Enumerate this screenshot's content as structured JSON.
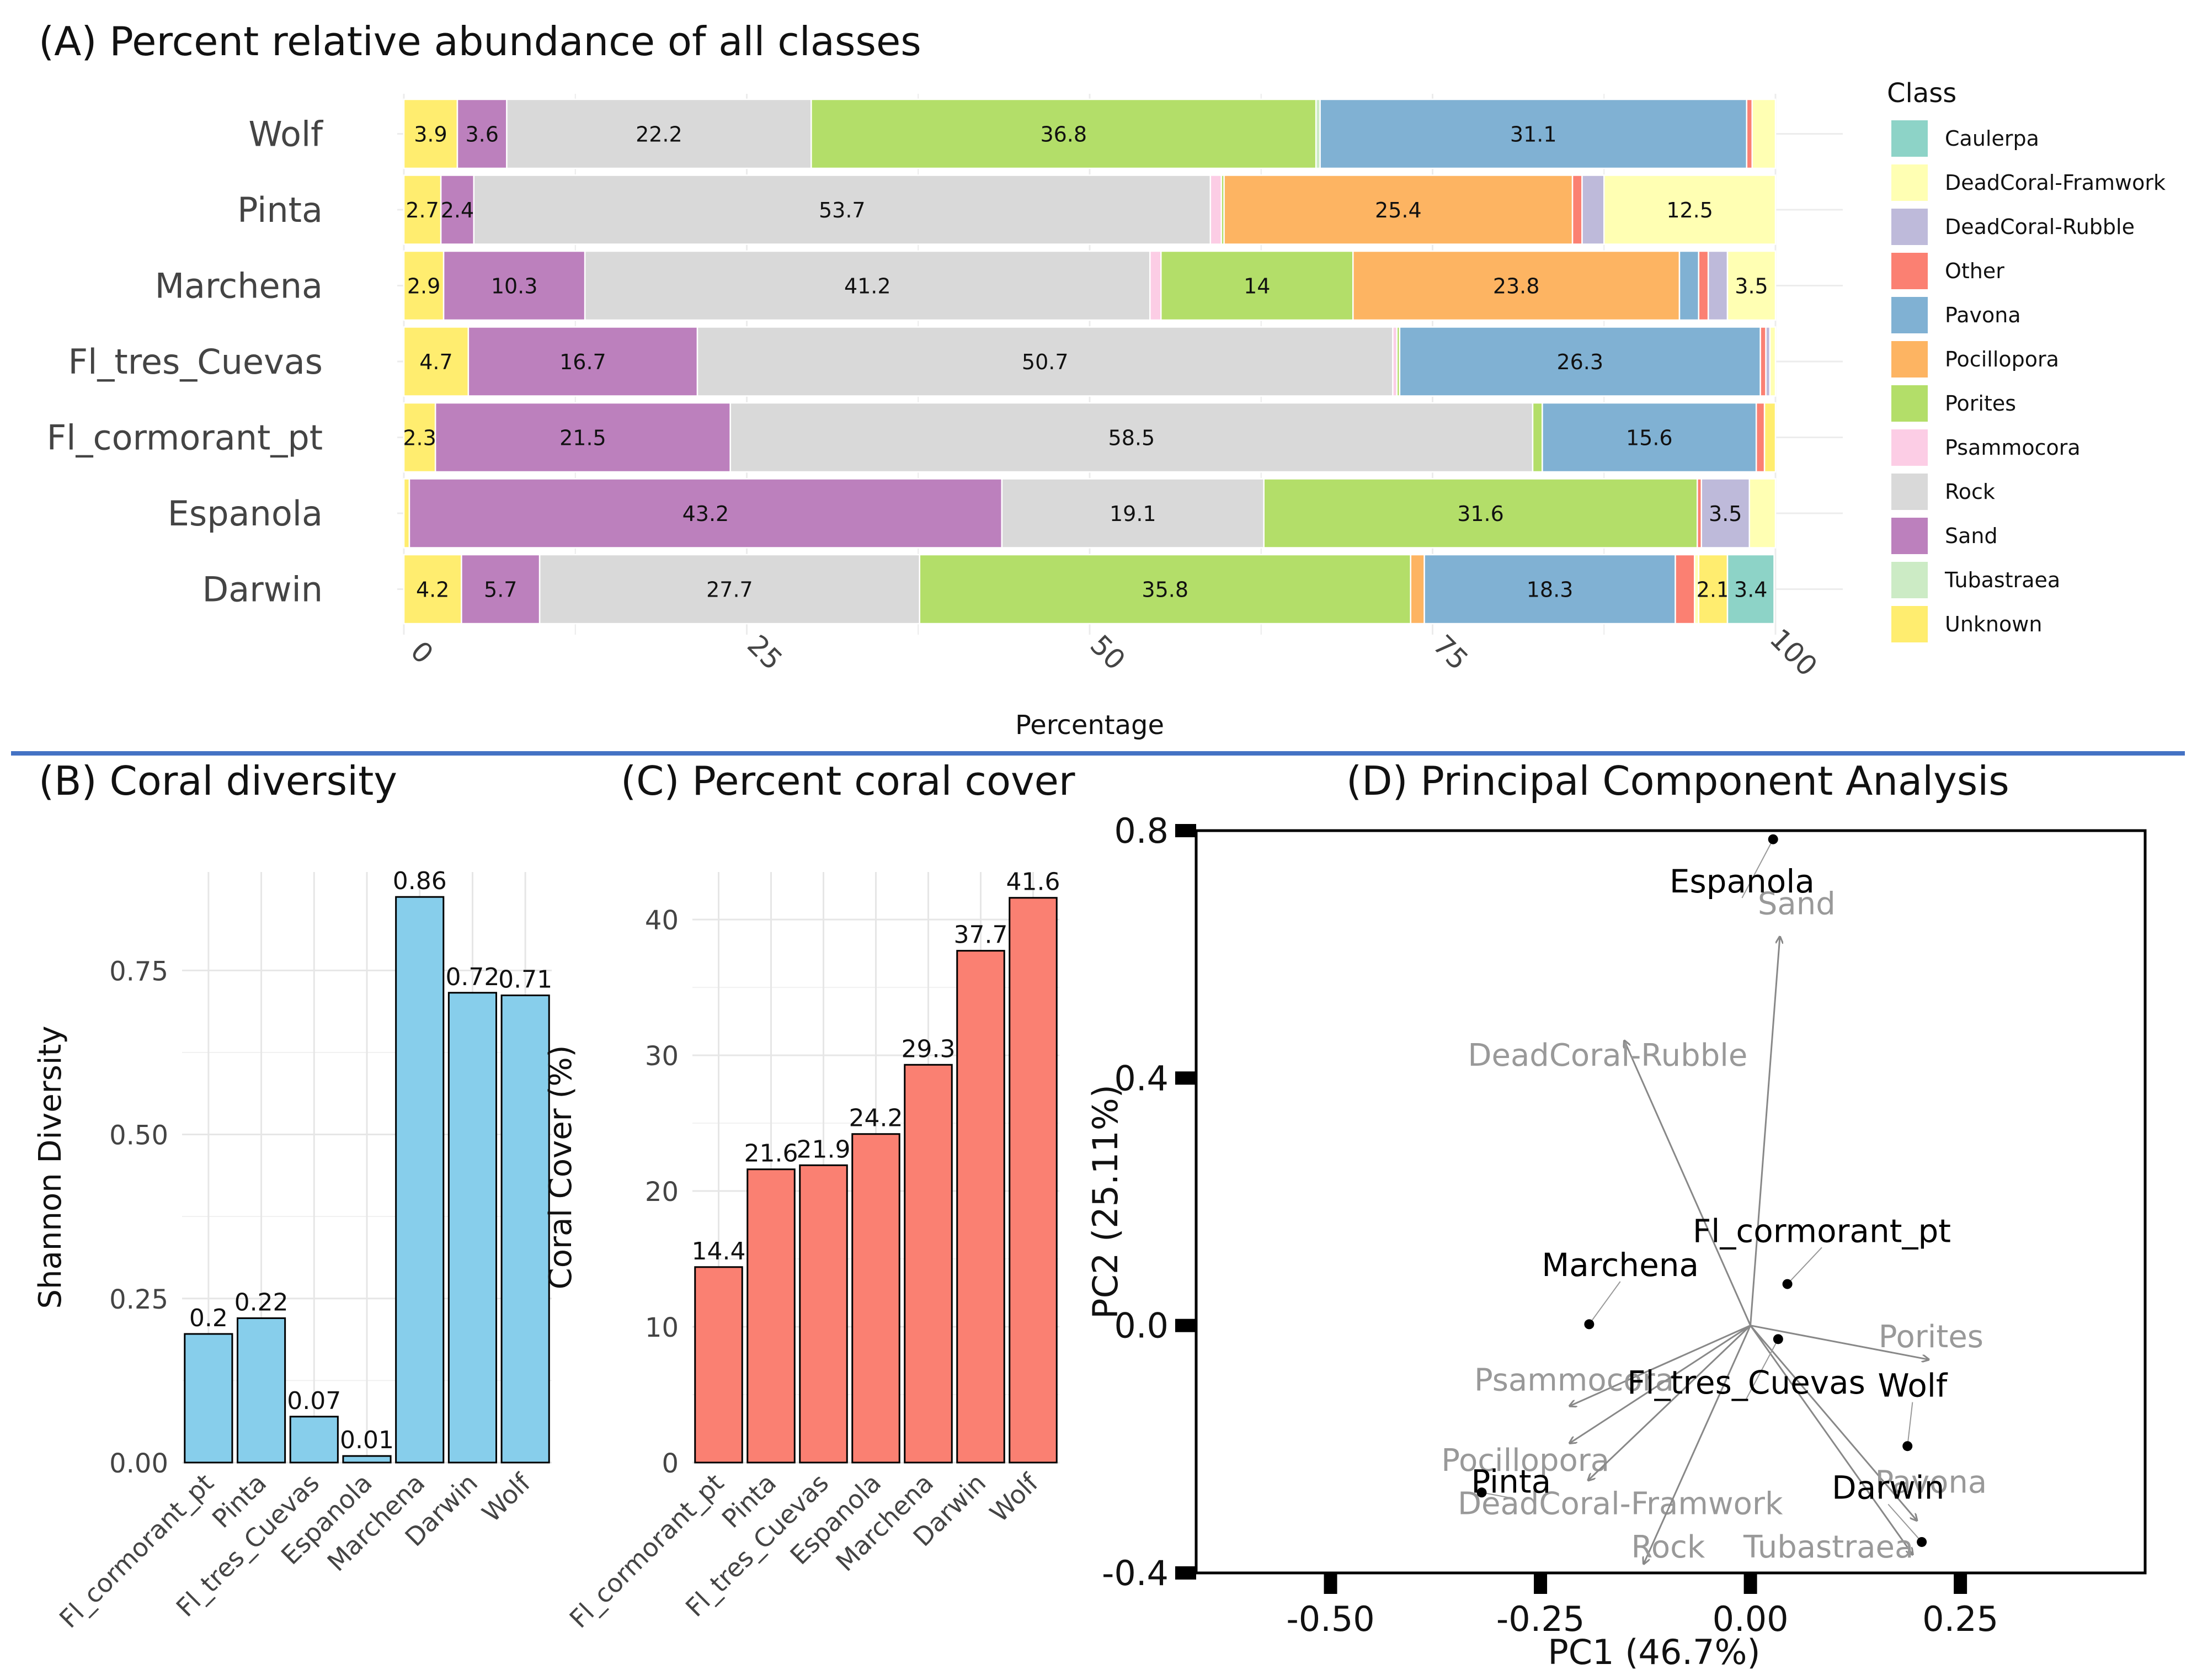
{
  "panel_titles": {
    "a": "(A) Percent relative abundance of all classes",
    "b": "(B) Coral diversity",
    "c": "(C) Percent coral cover",
    "d": "(D) Principal Component Analysis"
  },
  "colors": {
    "Caulerpa": "#8dd3c7",
    "DeadCoral-Framwork": "#ffffb3",
    "DeadCoral-Rubble": "#bebada",
    "Other": "#fb8072",
    "Pavona": "#80b1d3",
    "Pocillopora": "#fdb462",
    "Porites": "#b3de69",
    "Psammocora": "#fccde5",
    "Rock": "#d9d9d9",
    "Sand": "#bc80bd",
    "Tubastraea": "#ccebc5",
    "Unknown": "#ffed6f",
    "diversity_bar": "#87ceeb",
    "cover_bar": "#fa8072",
    "divider": "#4472c4"
  },
  "chart_data": [
    {
      "id": "A",
      "type": "bar",
      "orientation": "horizontal",
      "stacked": true,
      "title": "(A) Percent relative abundance of all classes",
      "xlabel": "Percentage",
      "ylabel": "",
      "xlim": [
        0,
        100
      ],
      "xticks": [
        "0",
        "25",
        "50",
        "75",
        "100"
      ],
      "legend_title": "Class",
      "legend_position": "right",
      "classes": [
        "Caulerpa",
        "DeadCoral-Framwork",
        "DeadCoral-Rubble",
        "Other",
        "Pavona",
        "Pocillopora",
        "Porites",
        "Psammocora",
        "Rock",
        "Sand",
        "Tubastraea",
        "Unknown"
      ],
      "categories": [
        "Wolf",
        "Pinta",
        "Marchena",
        "Fl_tres_Cuevas",
        "Fl_cormorant_pt",
        "Espanola",
        "Darwin"
      ],
      "rows": [
        {
          "site": "Wolf",
          "segments": [
            {
              "cls": "Unknown",
              "v": 3.9,
              "label": "3.9"
            },
            {
              "cls": "Sand",
              "v": 3.6,
              "label": "3.6"
            },
            {
              "cls": "Rock",
              "v": 22.2,
              "label": "22.2"
            },
            {
              "cls": "Porites",
              "v": 36.8,
              "label": "36.8"
            },
            {
              "cls": "Tubastraea",
              "v": 0.3,
              "label": ""
            },
            {
              "cls": "Pavona",
              "v": 31.1,
              "label": "31.1"
            },
            {
              "cls": "Other",
              "v": 0.4,
              "label": ""
            },
            {
              "cls": "DeadCoral-Framwork",
              "v": 1.7,
              "label": ""
            }
          ]
        },
        {
          "site": "Pinta",
          "segments": [
            {
              "cls": "Unknown",
              "v": 2.7,
              "label": "2.7"
            },
            {
              "cls": "Sand",
              "v": 2.4,
              "label": "2.4"
            },
            {
              "cls": "Rock",
              "v": 53.7,
              "label": "53.7"
            },
            {
              "cls": "Psammocora",
              "v": 0.8,
              "label": ""
            },
            {
              "cls": "Porites",
              "v": 0.2,
              "label": ""
            },
            {
              "cls": "Pocillopora",
              "v": 25.4,
              "label": "25.4"
            },
            {
              "cls": "Other",
              "v": 0.7,
              "label": ""
            },
            {
              "cls": "DeadCoral-Rubble",
              "v": 1.6,
              "label": ""
            },
            {
              "cls": "DeadCoral-Framwork",
              "v": 12.5,
              "label": "12.5"
            }
          ]
        },
        {
          "site": "Marchena",
          "segments": [
            {
              "cls": "Unknown",
              "v": 2.9,
              "label": "2.9"
            },
            {
              "cls": "Sand",
              "v": 10.3,
              "label": "10.3"
            },
            {
              "cls": "Rock",
              "v": 41.2,
              "label": "41.2"
            },
            {
              "cls": "Psammocora",
              "v": 0.8,
              "label": ""
            },
            {
              "cls": "Porites",
              "v": 14.0,
              "label": "14"
            },
            {
              "cls": "Pocillopora",
              "v": 23.8,
              "label": "23.8"
            },
            {
              "cls": "Pavona",
              "v": 1.4,
              "label": ""
            },
            {
              "cls": "Other",
              "v": 0.7,
              "label": ""
            },
            {
              "cls": "DeadCoral-Rubble",
              "v": 1.4,
              "label": ""
            },
            {
              "cls": "DeadCoral-Framwork",
              "v": 3.5,
              "label": "3.5"
            }
          ]
        },
        {
          "site": "Fl_tres_Cuevas",
          "segments": [
            {
              "cls": "Unknown",
              "v": 4.7,
              "label": "4.7"
            },
            {
              "cls": "Sand",
              "v": 16.7,
              "label": "16.7"
            },
            {
              "cls": "Rock",
              "v": 50.7,
              "label": "50.7"
            },
            {
              "cls": "Psammocora",
              "v": 0.3,
              "label": ""
            },
            {
              "cls": "Porites",
              "v": 0.2,
              "label": ""
            },
            {
              "cls": "Pavona",
              "v": 26.3,
              "label": "26.3"
            },
            {
              "cls": "Other",
              "v": 0.4,
              "label": ""
            },
            {
              "cls": "DeadCoral-Rubble",
              "v": 0.3,
              "label": ""
            },
            {
              "cls": "DeadCoral-Framwork",
              "v": 0.4,
              "label": ""
            }
          ]
        },
        {
          "site": "Fl_cormorant_pt",
          "segments": [
            {
              "cls": "Unknown",
              "v": 2.3,
              "label": "2.3"
            },
            {
              "cls": "Sand",
              "v": 21.5,
              "label": "21.5"
            },
            {
              "cls": "Rock",
              "v": 58.5,
              "label": "58.5"
            },
            {
              "cls": "Porites",
              "v": 0.7,
              "label": ""
            },
            {
              "cls": "Pavona",
              "v": 15.6,
              "label": "15.6"
            },
            {
              "cls": "Other",
              "v": 0.6,
              "label": ""
            },
            {
              "cls": "Unknown",
              "v": 0.8,
              "label": ""
            }
          ]
        },
        {
          "site": "Espanola",
          "segments": [
            {
              "cls": "Unknown",
              "v": 0.4,
              "label": ""
            },
            {
              "cls": "Sand",
              "v": 43.2,
              "label": "43.2"
            },
            {
              "cls": "Rock",
              "v": 19.1,
              "label": "19.1"
            },
            {
              "cls": "Porites",
              "v": 31.6,
              "label": "31.6"
            },
            {
              "cls": "Other",
              "v": 0.3,
              "label": ""
            },
            {
              "cls": "DeadCoral-Rubble",
              "v": 3.5,
              "label": "3.5"
            },
            {
              "cls": "DeadCoral-Framwork",
              "v": 1.9,
              "label": ""
            }
          ]
        },
        {
          "site": "Darwin",
          "segments": [
            {
              "cls": "Unknown",
              "v": 4.2,
              "label": "4.2"
            },
            {
              "cls": "Sand",
              "v": 5.7,
              "label": "5.7"
            },
            {
              "cls": "Rock",
              "v": 27.7,
              "label": "27.7"
            },
            {
              "cls": "Porites",
              "v": 35.8,
              "label": "35.8"
            },
            {
              "cls": "Pocillopora",
              "v": 1.0,
              "label": ""
            },
            {
              "cls": "Pavona",
              "v": 18.3,
              "label": "18.3"
            },
            {
              "cls": "Other",
              "v": 1.4,
              "label": ""
            },
            {
              "cls": "DeadCoral-Framwork",
              "v": 0.3,
              "label": ""
            },
            {
              "cls": "Unknown",
              "v": 2.1,
              "label": "2.1"
            },
            {
              "cls": "Caulerpa",
              "v": 3.4,
              "label": "3.4"
            }
          ]
        }
      ]
    },
    {
      "id": "B",
      "type": "bar",
      "title": "(B) Coral diversity",
      "xlabel": "",
      "ylabel": "Shannon Diversity",
      "ylim": [
        0,
        0.9
      ],
      "yticks": [
        "0.00",
        "0.25",
        "0.50",
        "0.75"
      ],
      "categories": [
        "Fl_cormorant_pt",
        "Pinta",
        "Fl_tres_Cuevas",
        "Espanola",
        "Marchena",
        "Darwin",
        "Wolf"
      ],
      "values": [
        0.196,
        0.22,
        0.07,
        0.01,
        0.862,
        0.716,
        0.712
      ],
      "labels": [
        "0.2",
        "0.22",
        "0.07",
        "0.01",
        "0.86",
        "0.72",
        "0.71"
      ]
    },
    {
      "id": "C",
      "type": "bar",
      "title": "(C) Percent coral cover",
      "xlabel": "",
      "ylabel": "Coral Cover (%)",
      "ylim": [
        0,
        43.5
      ],
      "yticks": [
        "0",
        "10",
        "20",
        "30",
        "40"
      ],
      "categories": [
        "Fl_cormorant_pt",
        "Pinta",
        "Fl_tres_Cuevas",
        "Espanola",
        "Marchena",
        "Darwin",
        "Wolf"
      ],
      "values": [
        14.4,
        21.6,
        21.9,
        24.2,
        29.3,
        37.7,
        41.6
      ],
      "labels": [
        "14.4",
        "21.6",
        "21.9",
        "24.2",
        "29.3",
        "37.7",
        "41.6"
      ]
    },
    {
      "id": "D",
      "type": "scatter",
      "title": "(D) Principal Component Analysis",
      "xlabel": "PC1 (46.7%)",
      "ylabel": "PC2 (25.11%)",
      "xlim": [
        -0.66,
        0.47
      ],
      "ylim": [
        -0.4,
        0.8
      ],
      "xticks": [
        -0.5,
        -0.25,
        0.0,
        0.25
      ],
      "xtick_labels": [
        "-0.50",
        "-0.25",
        "0.00",
        "0.25"
      ],
      "yticks": [
        -0.4,
        0.0,
        0.4,
        0.8
      ],
      "ytick_labels": [
        "-0.4",
        "0.0",
        "0.4",
        "0.8"
      ],
      "origin": [
        0.0,
        0.0
      ],
      "points": [
        {
          "name": "Espanola",
          "x": 0.027,
          "y": 0.786,
          "lx": -0.01,
          "ly": 0.7
        },
        {
          "name": "Fl_cormorant_pt",
          "x": 0.044,
          "y": 0.067,
          "lx": 0.085,
          "ly": 0.135
        },
        {
          "name": "Marchena",
          "x": -0.192,
          "y": 0.002,
          "lx": -0.155,
          "ly": 0.08
        },
        {
          "name": "Fl_tres_Cuevas",
          "x": 0.033,
          "y": -0.022,
          "lx": -0.005,
          "ly": -0.11
        },
        {
          "name": "Wolf",
          "x": 0.187,
          "y": -0.195,
          "lx": 0.193,
          "ly": -0.115
        },
        {
          "name": "Darwin",
          "x": 0.204,
          "y": -0.35,
          "lx": 0.164,
          "ly": -0.28
        },
        {
          "name": "Pinta",
          "x": -0.32,
          "y": -0.27,
          "lx": -0.285,
          "ly": -0.27
        }
      ],
      "loadings": [
        {
          "name": "Sand",
          "x": 0.035,
          "y": 0.628,
          "lx": 0.055,
          "ly": 0.665
        },
        {
          "name": "DeadCoral-Rubble",
          "x": -0.15,
          "y": 0.46,
          "lx": -0.17,
          "ly": 0.42
        },
        {
          "name": "Porites",
          "x": 0.212,
          "y": -0.055,
          "lx": 0.215,
          "ly": -0.035
        },
        {
          "name": "Psammocora",
          "x": -0.215,
          "y": -0.13,
          "lx": -0.21,
          "ly": -0.105
        },
        {
          "name": "Pocillopora",
          "x": -0.215,
          "y": -0.19,
          "lx": -0.268,
          "ly": -0.235
        },
        {
          "name": "DeadCoral-Framwork",
          "x": -0.193,
          "y": -0.25,
          "lx": -0.155,
          "ly": -0.305
        },
        {
          "name": "Rock",
          "x": -0.127,
          "y": -0.385,
          "lx": -0.098,
          "ly": -0.375
        },
        {
          "name": "Pavona",
          "x": 0.198,
          "y": -0.315,
          "lx": 0.215,
          "ly": -0.27
        },
        {
          "name": "Tubastraea",
          "x": 0.193,
          "y": -0.37,
          "lx": 0.093,
          "ly": -0.375
        }
      ]
    }
  ]
}
